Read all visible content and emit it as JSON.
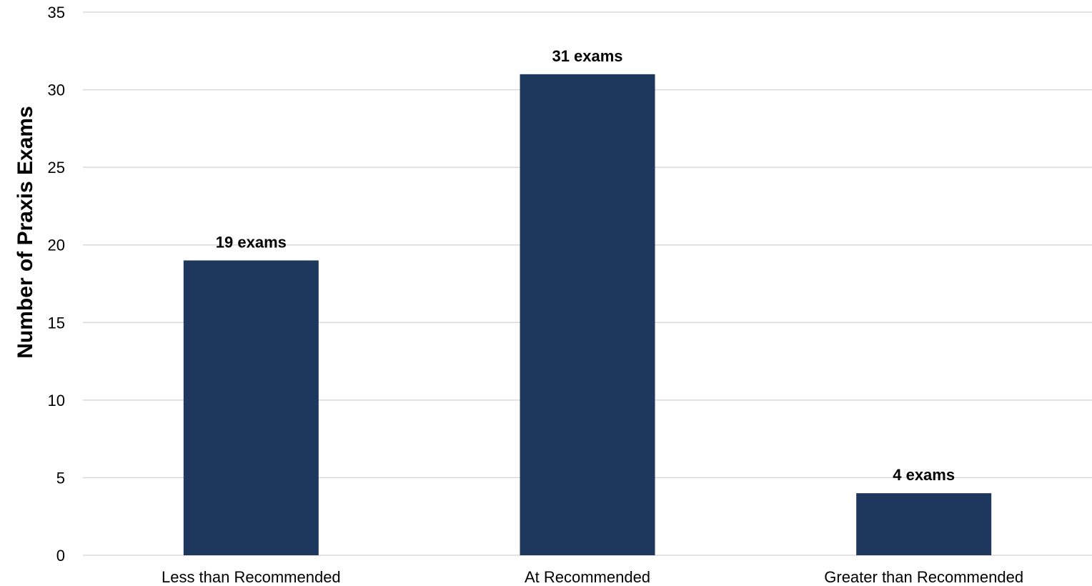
{
  "chart_data": {
    "type": "bar",
    "title": "",
    "xlabel": "",
    "ylabel": "Number of Praxis Exams",
    "categories": [
      "Less than Recommended",
      "At Recommended",
      "Greater than Recommended"
    ],
    "values": [
      19,
      31,
      4
    ],
    "data_labels": [
      "19 exams",
      "31 exams",
      "4 exams"
    ],
    "ylim": [
      0,
      35
    ],
    "yticks": [
      0,
      5,
      10,
      15,
      20,
      25,
      30,
      35
    ],
    "grid": true,
    "legend": "none",
    "colors": {
      "bar": "#1e375c",
      "grid": "#d9d9d9",
      "text": "#000000"
    }
  }
}
